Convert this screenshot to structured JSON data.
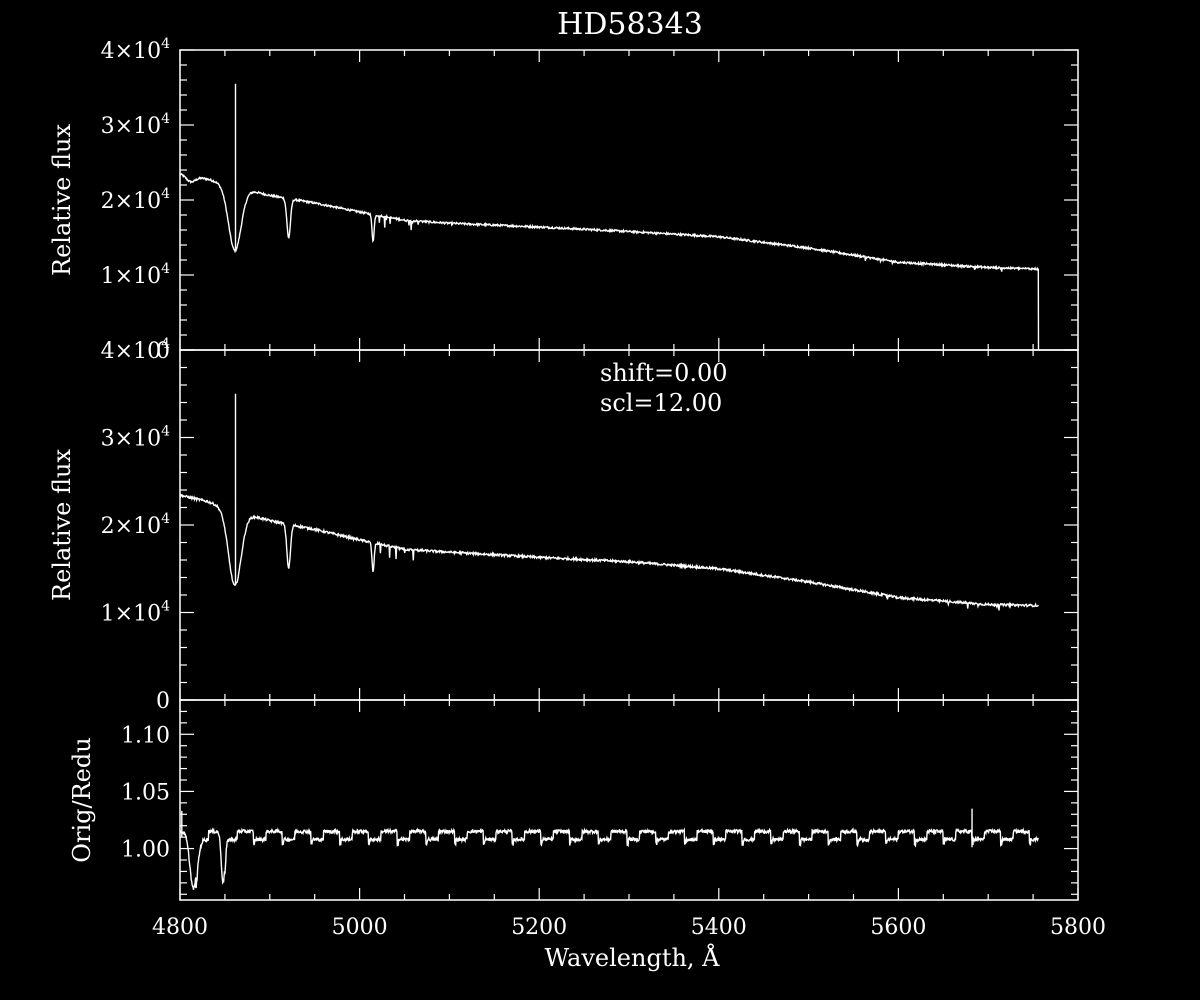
{
  "colors": {
    "background": "#000000",
    "foreground": "#ffffff"
  },
  "chart_data": {
    "type": "line",
    "title": "HD58343",
    "xlabel": "Wavelength, Å",
    "xlim": [
      4800,
      5800
    ],
    "x_ticks": [
      "4800",
      "5000",
      "5200",
      "5400",
      "5600",
      "5800"
    ],
    "panels": [
      {
        "id": "top",
        "ylabel": "Relative flux",
        "ylim": [
          0,
          40000
        ],
        "y_ticks": [
          {
            "value": 0,
            "mant": "0",
            "exp": ""
          },
          {
            "value": 10000,
            "mant": "1×10",
            "exp": "4"
          },
          {
            "value": 20000,
            "mant": "2×10",
            "exp": "4"
          },
          {
            "value": 30000,
            "mant": "3×10",
            "exp": "4"
          },
          {
            "value": 40000,
            "mant": "4×10",
            "exp": "4"
          }
        ],
        "spectrum": {
          "continuum": [
            [
              4800,
              23500
            ],
            [
              4830,
              22800
            ],
            [
              4860,
              21800
            ],
            [
              4900,
              20600
            ],
            [
              4950,
              19600
            ],
            [
              5000,
              18400
            ],
            [
              5050,
              17300
            ],
            [
              5100,
              16900
            ],
            [
              5200,
              16400
            ],
            [
              5300,
              15800
            ],
            [
              5400,
              15100
            ],
            [
              5500,
              13600
            ],
            [
              5600,
              11700
            ],
            [
              5700,
              11000
            ],
            [
              5756,
              10800
            ]
          ],
          "lines": [
            {
              "center": 4861,
              "depth": 8500,
              "width": 7
            },
            {
              "center": 4921,
              "depth": 5200,
              "width": 2
            },
            {
              "center": 5015,
              "depth": 3500,
              "width": 1.2
            },
            {
              "center": 4812,
              "depth": 800,
              "width": 5
            }
          ],
          "spike": {
            "x": 4862,
            "y": 35500
          },
          "drop_at": 5756
        }
      },
      {
        "id": "middle",
        "ylabel": "Relative flux",
        "ylim": [
          0,
          40000
        ],
        "y_ticks": [
          {
            "value": 0,
            "mant": "0",
            "exp": ""
          },
          {
            "value": 10000,
            "mant": "1×10",
            "exp": "4"
          },
          {
            "value": 20000,
            "mant": "2×10",
            "exp": "4"
          },
          {
            "value": 30000,
            "mant": "3×10",
            "exp": "4"
          },
          {
            "value": 40000,
            "mant": "4×10",
            "exp": "4"
          }
        ],
        "annotations": [
          "shift=0.00",
          "scl=12.00"
        ],
        "spectrum": {
          "continuum": [
            [
              4800,
              23400
            ],
            [
              4830,
              22700
            ],
            [
              4860,
              21600
            ],
            [
              4900,
              20500
            ],
            [
              4950,
              19500
            ],
            [
              5000,
              18300
            ],
            [
              5050,
              17200
            ],
            [
              5100,
              16900
            ],
            [
              5200,
              16300
            ],
            [
              5300,
              15800
            ],
            [
              5400,
              15000
            ],
            [
              5500,
              13500
            ],
            [
              5600,
              11700
            ],
            [
              5700,
              10900
            ],
            [
              5756,
              10800
            ]
          ],
          "lines": [
            {
              "center": 4861,
              "depth": 8500,
              "width": 7
            },
            {
              "center": 4921,
              "depth": 5000,
              "width": 2
            },
            {
              "center": 5015,
              "depth": 3300,
              "width": 1.2
            }
          ],
          "spike": {
            "x": 4862,
            "y": 35000
          }
        }
      },
      {
        "id": "bottom",
        "ylabel": "Orig/Redu",
        "ylim": [
          0.955,
          1.13
        ],
        "y_ticks": [
          {
            "value": 1.0,
            "mant": "1.00",
            "exp": ""
          },
          {
            "value": 1.05,
            "mant": "1.05",
            "exp": ""
          },
          {
            "value": 1.1,
            "mant": "1.10",
            "exp": ""
          }
        ],
        "ratio": {
          "x_start": 4800,
          "x_end": 5756,
          "high": 1.015,
          "low": 1.008,
          "segment_width": 32,
          "dips": [
            {
              "center": 4815,
              "depth": 0.05,
              "width": 4
            },
            {
              "center": 4848,
              "depth": 0.045,
              "width": 2
            }
          ],
          "spikes": [
            {
              "x": 4802,
              "y": 1.033
            },
            {
              "x": 5682,
              "y": 1.035
            }
          ]
        }
      }
    ]
  }
}
